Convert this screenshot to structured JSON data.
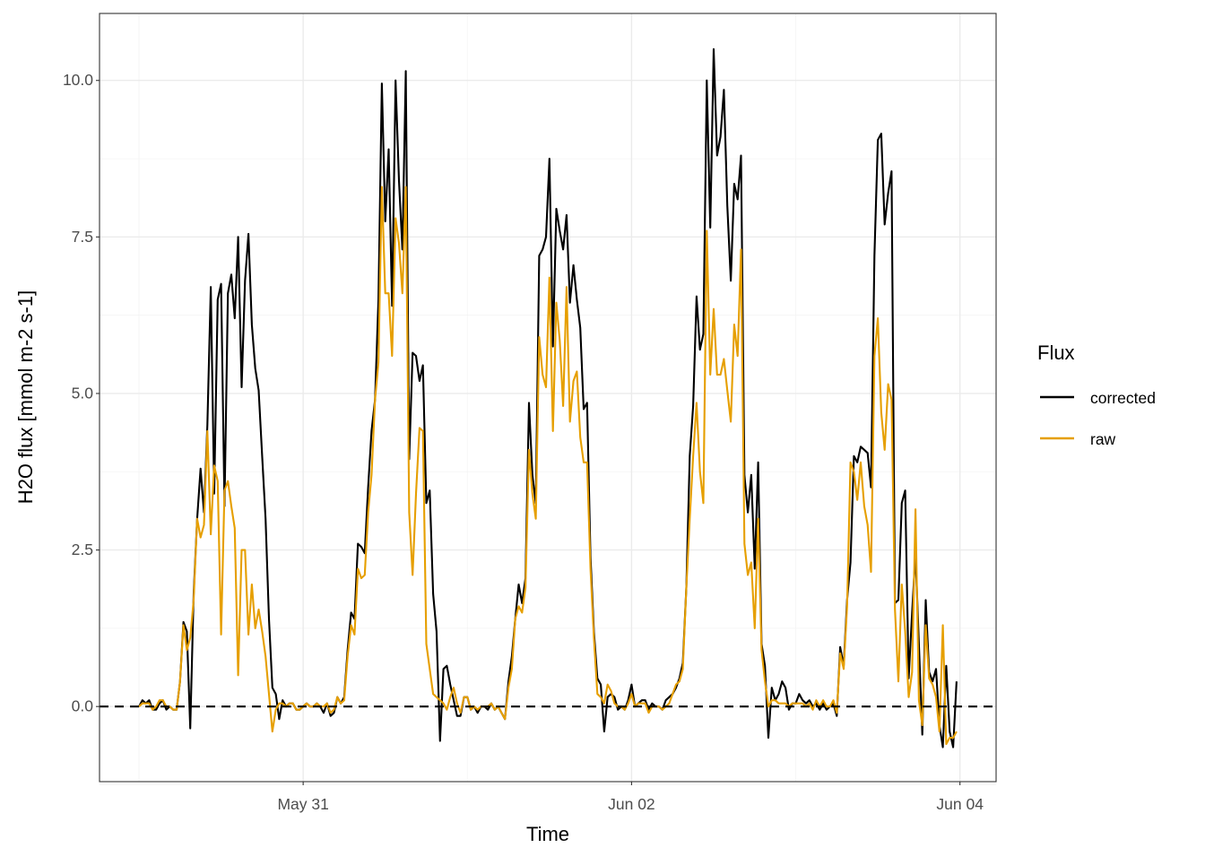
{
  "chart_data": {
    "type": "line",
    "title": "",
    "xlabel": "Time",
    "ylabel": "H2O flux [mmol m-2 s-1]",
    "xlim": [
      "May 29 18:14",
      "Jun 04 05:17"
    ],
    "ylim": [
      -1.2,
      11.07
    ],
    "x_ticks": [
      {
        "label": "May 31",
        "time": "May 31 00:00"
      },
      {
        "label": "Jun 02",
        "time": "Jun 02 00:00"
      },
      {
        "label": "Jun 04",
        "time": "Jun 04 00:00"
      }
    ],
    "x_minor_ticks": [
      "May 30 00:00",
      "Jun 01 00:00",
      "Jun 03 00:00"
    ],
    "y_ticks": [
      {
        "label": "0.0",
        "value": 0
      },
      {
        "label": "2.5",
        "value": 2.5
      },
      {
        "label": "5.0",
        "value": 5
      },
      {
        "label": "7.5",
        "value": 7.5
      },
      {
        "label": "10.0",
        "value": 10
      }
    ],
    "y_minor_ticks": [
      -1.25,
      1.25,
      3.75,
      6.25,
      8.75
    ],
    "grid": true,
    "reference_line": {
      "value": 0,
      "style": "dashed",
      "color": "#000000"
    },
    "legend": {
      "title": "Flux",
      "placement": "right"
    },
    "interval_minutes": 30,
    "days": [
      "May 30",
      "May 31",
      "Jun 01",
      "Jun 02",
      "Jun 03"
    ],
    "series": [
      {
        "name": "corrected",
        "color": "#000000",
        "values_by_day": [
          [
            0,
            0.1,
            0.05,
            0.1,
            -0.05,
            -0.05,
            0.05,
            0.1,
            -0.05,
            0,
            -0.05,
            -0.05,
            0.4,
            1.35,
            1.2,
            -0.35,
            1.8,
            3.0,
            3.8,
            3.1,
            4.5,
            6.7,
            3.4,
            6.5,
            6.75,
            3.2,
            6.6,
            6.9,
            6.2,
            7.5,
            5.1,
            6.8,
            7.55,
            6.1,
            5.4,
            5.05,
            4.0,
            3.0,
            1.4,
            0.3,
            0.2,
            -0.2,
            0.1,
            0,
            0.05,
            0.05,
            -0.05,
            -0.05
          ],
          [
            0,
            0.05,
            0,
            0,
            0.05,
            0,
            -0.1,
            0.05,
            -0.15,
            -0.1,
            0.15,
            0.05,
            0.15,
            0.9,
            1.5,
            1.4,
            2.6,
            2.55,
            2.45,
            3.5,
            4.4,
            4.9,
            6.5,
            9.95,
            7.75,
            8.9,
            6.4,
            10.0,
            8.4,
            7.3,
            10.15,
            3.95,
            5.65,
            5.6,
            5.2,
            5.45,
            3.25,
            3.45,
            1.8,
            1.2,
            -0.55,
            0.6,
            0.65,
            0.35,
            0.1,
            -0.15,
            -0.15,
            0.15
          ],
          [
            0.15,
            -0.05,
            0,
            -0.1,
            0,
            0,
            -0.05,
            0.05,
            -0.05,
            0,
            -0.1,
            -0.2,
            0.4,
            0.8,
            1.4,
            1.95,
            1.65,
            2.05,
            4.85,
            3.7,
            3.25,
            7.2,
            7.3,
            7.5,
            8.75,
            5.75,
            7.95,
            7.6,
            7.3,
            7.85,
            6.45,
            7.05,
            6.5,
            6.05,
            4.75,
            4.85,
            2.4,
            1.2,
            0.45,
            0.35,
            -0.4,
            0.15,
            0.2,
            0.15,
            -0.05,
            0,
            -0.05,
            0.1
          ],
          [
            0.35,
            0,
            0.05,
            0.1,
            0.1,
            -0.05,
            0.05,
            0,
            0,
            -0.05,
            0.1,
            0.15,
            0.2,
            0.3,
            0.45,
            0.7,
            1.9,
            4.0,
            4.8,
            6.55,
            5.7,
            5.95,
            10.0,
            7.65,
            10.5,
            8.8,
            9.1,
            9.85,
            8.0,
            6.8,
            8.35,
            8.1,
            8.8,
            3.7,
            3.1,
            3.7,
            2.2,
            3.9,
            1.0,
            0.65,
            -0.5,
            0.3,
            0.1,
            0.2,
            0.4,
            0.3,
            -0.05,
            0.05
          ],
          [
            0.05,
            0.2,
            0.1,
            0.05,
            0.1,
            0,
            0.05,
            -0.05,
            0.05,
            -0.05,
            0,
            0.05,
            -0.15,
            0.95,
            0.65,
            1.7,
            2.3,
            4.0,
            3.9,
            4.15,
            4.1,
            4.05,
            3.5,
            7.2,
            9.05,
            9.15,
            7.7,
            8.2,
            8.55,
            1.65,
            1.7,
            3.25,
            3.45,
            0.45,
            1.5,
            2.45,
            1.0,
            -0.45,
            1.7,
            0.55,
            0.4,
            0.6,
            -0.3,
            -0.65,
            0.65,
            -0.4,
            -0.65,
            0.4
          ]
        ]
      },
      {
        "name": "raw",
        "color": "#E69F00",
        "values_by_day": [
          [
            0,
            0.05,
            0.05,
            0.05,
            -0.05,
            0,
            0.1,
            0.1,
            0,
            0,
            -0.05,
            -0.05,
            0.4,
            1.3,
            0.9,
            1.1,
            1.7,
            3.0,
            2.7,
            2.9,
            4.4,
            2.75,
            3.85,
            3.6,
            1.15,
            3.45,
            3.6,
            3.2,
            2.85,
            0.5,
            2.5,
            2.5,
            1.15,
            1.95,
            1.25,
            1.55,
            1.2,
            0.8,
            0.2,
            -0.4,
            -0.05,
            0.05,
            0.05,
            0,
            0.05,
            0.05,
            -0.05,
            -0.05
          ],
          [
            0,
            0.05,
            0,
            0,
            0.05,
            0,
            0,
            0.05,
            -0.1,
            -0.05,
            0.15,
            0.05,
            0.1,
            0.8,
            1.3,
            1.15,
            2.2,
            2.05,
            2.1,
            3.1,
            3.7,
            4.9,
            5.5,
            8.3,
            6.6,
            6.6,
            5.6,
            7.8,
            7.4,
            6.6,
            8.3,
            3.1,
            2.1,
            3.4,
            4.45,
            4.4,
            1.0,
            0.6,
            0.2,
            0.15,
            0.1,
            0.05,
            -0.05,
            0.15,
            0.3,
            0.05,
            -0.1,
            0.15
          ],
          [
            0.15,
            -0.05,
            0,
            -0.05,
            0,
            0,
            0,
            0.05,
            -0.05,
            0,
            -0.1,
            -0.2,
            0.3,
            0.6,
            1.4,
            1.6,
            1.5,
            1.9,
            4.1,
            3.4,
            3.0,
            5.9,
            5.3,
            5.1,
            6.85,
            4.4,
            6.45,
            5.85,
            4.8,
            6.7,
            4.55,
            5.2,
            5.35,
            4.3,
            3.9,
            3.9,
            2.2,
            1.1,
            0.2,
            0.15,
            0.05,
            0.35,
            0.25,
            0.05,
            0,
            0,
            -0.05,
            0.05
          ],
          [
            0.2,
            0,
            0.05,
            0.05,
            0.05,
            -0.1,
            0,
            0,
            0,
            -0.05,
            0,
            0.05,
            0.2,
            0.35,
            0.4,
            0.6,
            1.9,
            3.0,
            4.0,
            4.85,
            3.75,
            3.25,
            7.6,
            5.3,
            6.35,
            5.3,
            5.3,
            5.55,
            5.05,
            4.55,
            6.1,
            5.6,
            7.3,
            2.6,
            2.1,
            2.3,
            1.25,
            3.0,
            0.9,
            0.4,
            0,
            0.1,
            0.1,
            0.05,
            0.05,
            0.05,
            0,
            0.05
          ],
          [
            0.05,
            0.05,
            0.05,
            0,
            0.05,
            -0.05,
            0.1,
            0,
            0.1,
            0,
            0,
            0.1,
            -0.1,
            0.85,
            0.6,
            1.6,
            3.9,
            3.75,
            3.3,
            3.9,
            3.2,
            2.9,
            2.15,
            5.6,
            6.2,
            4.7,
            4.1,
            5.15,
            4.9,
            1.55,
            0.4,
            1.95,
            1.2,
            0.15,
            0.55,
            3.15,
            0.1,
            -0.3,
            1.3,
            0.45,
            0.35,
            0.15,
            -0.4,
            1.3,
            -0.6,
            -0.5,
            -0.5,
            -0.4
          ]
        ]
      }
    ]
  }
}
